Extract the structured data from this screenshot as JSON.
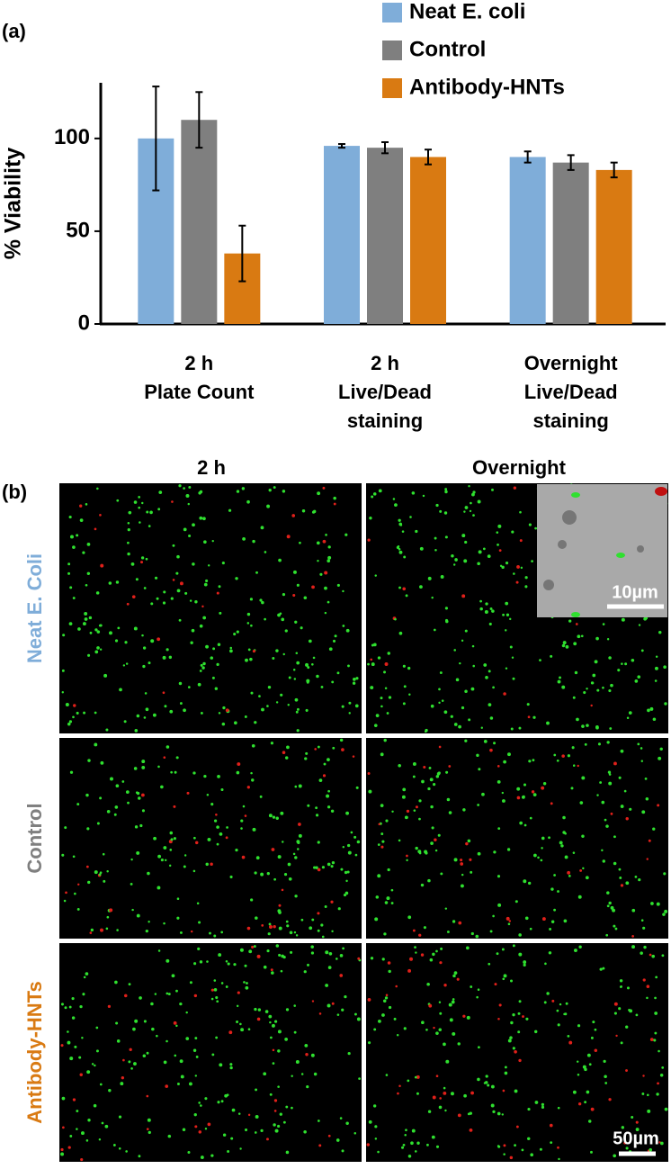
{
  "panel_labels": [
    "(a)",
    "(b)"
  ],
  "chart_data": {
    "type": "bar",
    "y_label": "% Viability",
    "categories": [
      [
        "2 h",
        "Plate Count"
      ],
      [
        "2 h",
        "Live/Dead",
        "staining"
      ],
      [
        "Overnight",
        "Live/Dead",
        "staining"
      ]
    ],
    "series": [
      {
        "name": "Neat E. coli",
        "color": "#7fadd9",
        "values": [
          100,
          96,
          90
        ],
        "errors": [
          28,
          1,
          3
        ]
      },
      {
        "name": "Control",
        "color": "#7f7f7f",
        "values": [
          110,
          95,
          87
        ],
        "errors": [
          15,
          3,
          4
        ]
      },
      {
        "name": "Antibody-HNTs",
        "color": "#d97a12",
        "values": [
          38,
          90,
          83
        ],
        "errors": [
          15,
          4,
          4
        ]
      }
    ],
    "ylim": [
      0,
      130
    ],
    "yticks": [
      0,
      50,
      100
    ],
    "grid": false
  },
  "micrographs": {
    "columns": [
      "2 h",
      "Overnight"
    ],
    "rows": [
      {
        "label": "Neat E. Coli",
        "color": "#7fadd9"
      },
      {
        "label": "Control",
        "color": "#7f7f7f"
      },
      {
        "label": "Antibody-HNTs",
        "color": "#d97a12"
      }
    ],
    "inset_scale": "10µm",
    "scale": "50µm"
  }
}
